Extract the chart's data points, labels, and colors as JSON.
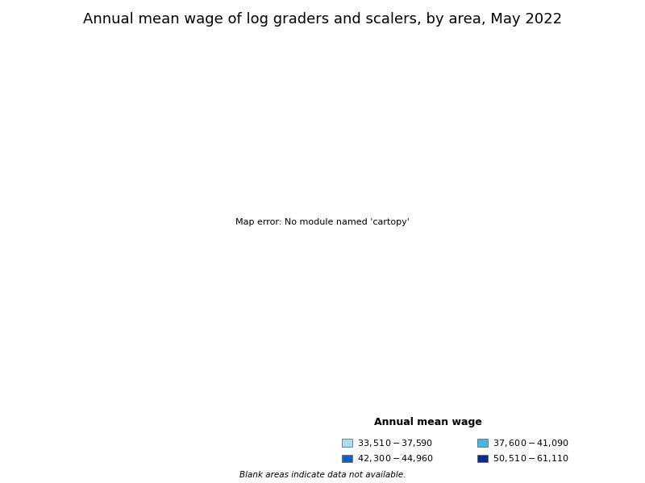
{
  "title": "Annual mean wage of log graders and scalers, by area, May 2022",
  "legend_title": "Annual mean wage",
  "legend_entries": [
    {
      "label": "$33,510 - $37,590",
      "color": "#a8dff0"
    },
    {
      "label": "$37,600 - $41,090",
      "color": "#45b8e0"
    },
    {
      "label": "$42,300 - $44,960",
      "color": "#1a5fbf"
    },
    {
      "label": "$50,510 - $61,110",
      "color": "#0d2d8a"
    }
  ],
  "footnote": "Blank areas indicate data not available.",
  "background_color": "#ffffff",
  "edge_color": "#000000",
  "county_edge_width": 0.3,
  "state_edge_width": 0.7,
  "title_fontsize": 13,
  "legend_title_fontsize": 9,
  "legend_fontsize": 8,
  "footnote_fontsize": 7.5,
  "area_colors": {
    "light_cyan": "#a8dff0",
    "cyan": "#45b8e0",
    "medium_blue": "#1a5fbf",
    "dark_blue": "#0d2d8a"
  },
  "state_color_map": {
    "41": "dark_blue",
    "16": "dark_blue",
    "28": "medium_blue",
    "54": "medium_blue",
    "21": "cyan",
    "39": "cyan",
    "42": "cyan",
    "51": "cyan",
    "22": "light_cyan",
    "01": "light_cyan",
    "02": "dark_blue"
  }
}
